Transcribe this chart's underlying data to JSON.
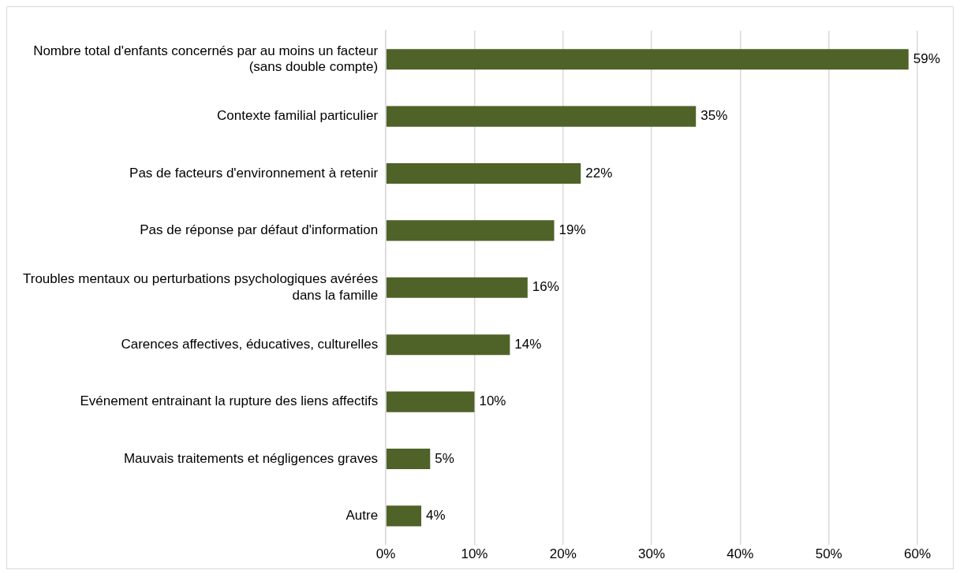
{
  "chart_data": {
    "type": "bar",
    "orientation": "horizontal",
    "categories": [
      "Nombre total d'enfants concernés par au moins un facteur (sans double compte)",
      "Contexte familial particulier",
      "Pas de facteurs d'environnement à retenir",
      "Pas de réponse par défaut d'information",
      "Troubles mentaux ou perturbations psychologiques avérées dans la famille",
      "Carences affectives, éducatives, culturelles",
      "Evénement entrainant la rupture des liens affectifs",
      "Mauvais traitements et négligences graves",
      "Autre"
    ],
    "values": [
      59,
      35,
      22,
      19,
      16,
      14,
      10,
      5,
      4
    ],
    "value_labels": [
      "59%",
      "35%",
      "22%",
      "19%",
      "16%",
      "14%",
      "10%",
      "5%",
      "4%"
    ],
    "color": "#4f6228",
    "xlim": [
      0,
      60
    ],
    "xticks": [
      {
        "value": 0,
        "label": "0%"
      },
      {
        "value": 10,
        "label": "10%"
      },
      {
        "value": 20,
        "label": "20%"
      },
      {
        "value": 30,
        "label": "30%"
      },
      {
        "value": 40,
        "label": "40%"
      },
      {
        "value": 50,
        "label": "50%"
      },
      {
        "value": 60,
        "label": "60%"
      }
    ],
    "grid": "x"
  }
}
